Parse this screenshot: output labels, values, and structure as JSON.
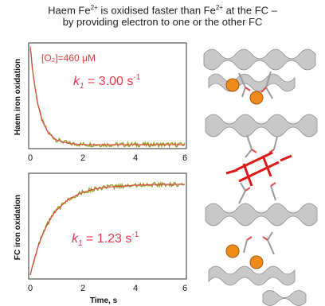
{
  "header": {
    "line1_a": "Haem Fe",
    "line1_sup1": "2+",
    "line1_b": " is oxidised faster than Fe",
    "line1_sup2": "2+",
    "line1_c": " at the FC –",
    "line2": "by providing electron to one or the other FC"
  },
  "colors": {
    "data_trace": "#9a9a1e",
    "fit_line": "#e8394a",
    "annotation": "#e83a3a",
    "axis": "#333333"
  },
  "chart_data": [
    {
      "type": "line",
      "title": "",
      "xlabel": "",
      "ylabel": "Haem iron oxidation",
      "xlim": [
        0,
        6
      ],
      "x_ticks": [
        "0",
        "2",
        "4",
        "6"
      ],
      "grid": false,
      "annotation_conc": "[O₂]=460 μM",
      "annotation_k_label": "k",
      "annotation_k_sub": "1",
      "annotation_k_value": " = 3.00 s",
      "annotation_k_sup": "-1",
      "series": [
        {
          "x": [
            0.0,
            0.05,
            0.1,
            0.2,
            0.3,
            0.4,
            0.5,
            0.7,
            1.0,
            1.5,
            2.0,
            2.5,
            3.0,
            4.0,
            5.0,
            6.0
          ],
          "y": [
            1.0,
            0.86,
            0.74,
            0.55,
            0.41,
            0.3,
            0.22,
            0.12,
            0.05,
            0.011,
            0.002,
            0.0,
            0.0,
            0.0,
            0.0,
            0.0
          ]
        }
      ]
    },
    {
      "type": "line",
      "title": "",
      "xlabel": "Time, s",
      "ylabel": "FC iron oxidation",
      "xlim": [
        0,
        6
      ],
      "x_ticks": [
        "0",
        "2",
        "4",
        "6"
      ],
      "grid": false,
      "annotation_k_label": "k",
      "annotation_k_sub": "1",
      "annotation_k_value": " = 1.23 s",
      "annotation_k_sup": "-1",
      "series": [
        {
          "x": [
            0.0,
            0.1,
            0.2,
            0.4,
            0.6,
            0.8,
            1.0,
            1.5,
            2.0,
            2.5,
            3.0,
            4.0,
            5.0,
            6.0
          ],
          "y": [
            0.0,
            0.12,
            0.22,
            0.39,
            0.52,
            0.63,
            0.71,
            0.84,
            0.91,
            0.95,
            0.97,
            0.99,
            1.0,
            1.0
          ]
        }
      ]
    }
  ]
}
